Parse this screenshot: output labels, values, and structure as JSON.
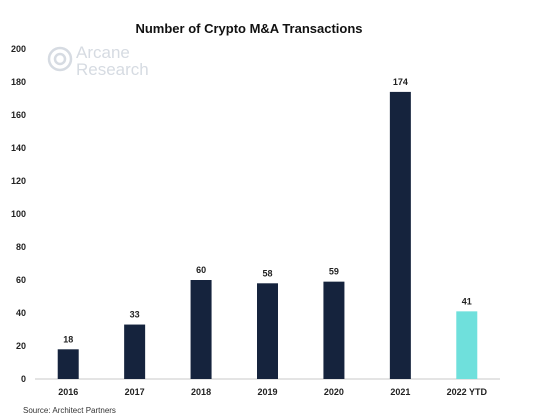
{
  "chart_data": {
    "type": "bar",
    "title": "Number of Crypto M&A Transactions",
    "categories": [
      "2016",
      "2017",
      "2018",
      "2019",
      "2020",
      "2021",
      "2022 YTD"
    ],
    "values": [
      18,
      33,
      60,
      58,
      59,
      174,
      41
    ],
    "data_labels": [
      "18",
      "33",
      "60",
      "58",
      "59",
      "174",
      "41"
    ],
    "xlabel": "",
    "ylabel": "",
    "ylim": [
      0,
      200
    ],
    "yticks": [
      "0",
      "20",
      "40",
      "60",
      "80",
      "100",
      "120",
      "140",
      "160",
      "180",
      "200"
    ],
    "grid": false,
    "legend": "none",
    "colors": {
      "default_bar": "#15233d",
      "highlight_bar": "#6fe0dc",
      "highlight_category": "2022 YTD"
    }
  },
  "watermark": {
    "line1": "Arcane",
    "line2": "Research",
    "icon": "arcane-research-logo-icon"
  },
  "source": "Source: Architect Partners"
}
